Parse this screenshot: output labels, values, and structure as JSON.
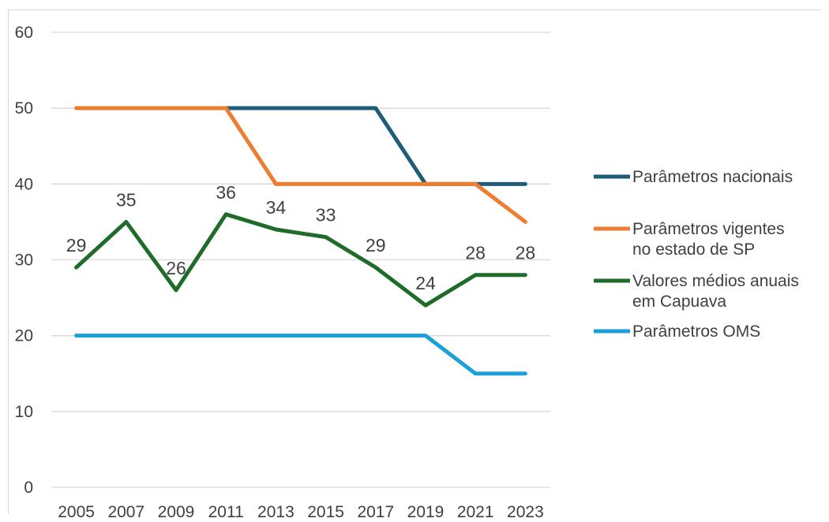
{
  "chart_data": {
    "type": "line",
    "title": "",
    "xlabel": "",
    "ylabel": "",
    "x": [
      "2005",
      "2007",
      "2009",
      "2011",
      "2013",
      "2015",
      "2017",
      "2019",
      "2021",
      "2023"
    ],
    "ylim": [
      0,
      60
    ],
    "yticks": [
      "0",
      "10",
      "20",
      "30",
      "40",
      "50",
      "60"
    ],
    "grid": true,
    "legend_position": "right",
    "series": [
      {
        "name": "Parâmetros nacionais",
        "color": "#1f5c7a",
        "values": [
          null,
          null,
          null,
          50,
          50,
          50,
          50,
          40,
          40,
          40
        ]
      },
      {
        "name": "Parâmetros vigentes no estado de SP",
        "legend_lines": [
          "Parâmetros vigentes",
          "no estado de SP"
        ],
        "color": "#ed7d31",
        "values": [
          50,
          50,
          50,
          50,
          40,
          40,
          40,
          40,
          40,
          35
        ]
      },
      {
        "name": "Valores médios anuais em Capuava",
        "legend_lines": [
          "Valores médios anuais",
          "em Capuava"
        ],
        "color": "#1e6b2a",
        "values": [
          29,
          35,
          26,
          36,
          34,
          33,
          29,
          24,
          28,
          28
        ],
        "data_labels": [
          "29",
          "35",
          "26",
          "36",
          "34",
          "33",
          "29",
          "24",
          "28",
          "28"
        ]
      },
      {
        "name": "Parâmetros OMS",
        "color": "#1ba1d8",
        "values": [
          20,
          20,
          20,
          20,
          20,
          20,
          20,
          20,
          15,
          15
        ]
      }
    ]
  }
}
